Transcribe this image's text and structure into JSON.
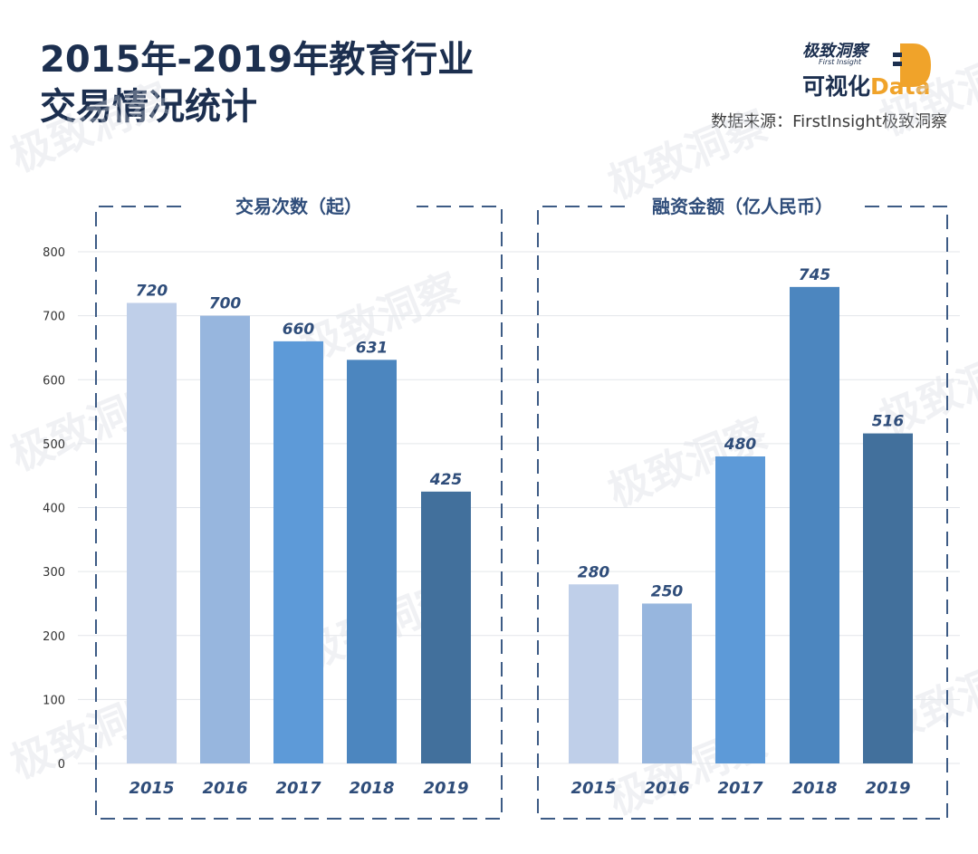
{
  "title_line1": "2015年-2019年教育行业",
  "title_line2": "交易情况统计",
  "logo": {
    "top": "极致洞察",
    "sub": "First Insight",
    "main": "可视化",
    "accent": "Data"
  },
  "source": "数据来源：FirstInsight极致洞察",
  "colors": [
    "#bfcfe9",
    "#97b6de",
    "#5d9ad8",
    "#4c86bf",
    "#42709c"
  ],
  "chart_data": [
    {
      "type": "bar",
      "title": "交易次数（起）",
      "categories": [
        "2015",
        "2016",
        "2017",
        "2018",
        "2019"
      ],
      "values": [
        720,
        700,
        660,
        631,
        425
      ],
      "ylim": [
        0,
        800
      ],
      "yticks": [
        0,
        100,
        200,
        300,
        400,
        500,
        600,
        700,
        800
      ],
      "grid": true
    },
    {
      "type": "bar",
      "title": "融资金额（亿人民币）",
      "categories": [
        "2015",
        "2016",
        "2017",
        "2018",
        "2019"
      ],
      "values": [
        280,
        250,
        480,
        745,
        516
      ],
      "ylim": [
        0,
        800
      ],
      "grid": true
    }
  ]
}
